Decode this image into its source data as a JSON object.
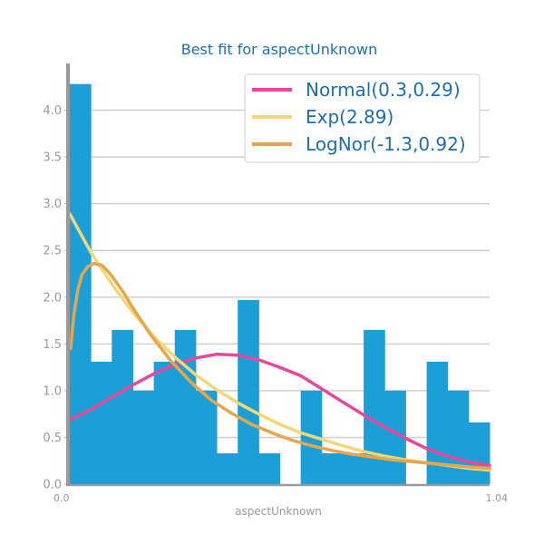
{
  "chart_data": {
    "type": "bar",
    "title": "Best fit for aspectUnknown",
    "xlabel": "aspectUnknown",
    "ylabel": "",
    "xlim": [
      0,
      1.04
    ],
    "ylim": [
      0,
      4.5
    ],
    "yticks": [
      "0.0",
      "0.5",
      "1.0",
      "1.5",
      "2.0",
      "2.5",
      "3.0",
      "3.5",
      "4.0"
    ],
    "xtick_labels_text": [
      "0.0",
      "1.04"
    ],
    "grid": "horizontal",
    "legend_position": "top-right",
    "histogram": {
      "bin_width": 0.052,
      "values": [
        4.28,
        1.31,
        1.65,
        1.0,
        1.31,
        1.65,
        1.0,
        0.33,
        1.97,
        0.33,
        0.0,
        1.0,
        0.33,
        0.33,
        1.65,
        1.0,
        0.0,
        1.31,
        1.0,
        0.66
      ],
      "color": "#1c9fd7"
    },
    "series": [
      {
        "name": "Normal(0.3,0.29)",
        "type": "line",
        "color": "#e8489b",
        "x": [
          0.0,
          0.052,
          0.104,
          0.156,
          0.208,
          0.26,
          0.312,
          0.364,
          0.416,
          0.468,
          0.52,
          0.572,
          0.624,
          0.676,
          0.728,
          0.78,
          0.832,
          0.884,
          0.936,
          0.988,
          1.04
        ],
        "y": [
          0.69,
          0.8,
          0.93,
          1.06,
          1.18,
          1.28,
          1.35,
          1.39,
          1.38,
          1.33,
          1.25,
          1.16,
          1.02,
          0.88,
          0.74,
          0.61,
          0.49,
          0.38,
          0.3,
          0.24,
          0.2
        ]
      },
      {
        "name": "Exp(2.89)",
        "type": "line",
        "color": "#f0d878",
        "x": [
          0.0,
          0.052,
          0.104,
          0.156,
          0.208,
          0.26,
          0.312,
          0.364,
          0.416,
          0.468,
          0.52,
          0.572,
          0.624,
          0.676,
          0.728,
          0.78,
          0.832,
          0.884,
          0.936,
          0.988,
          1.04
        ],
        "y": [
          2.89,
          2.48,
          2.14,
          1.84,
          1.58,
          1.36,
          1.17,
          1.01,
          0.87,
          0.75,
          0.64,
          0.55,
          0.48,
          0.41,
          0.35,
          0.3,
          0.26,
          0.23,
          0.2,
          0.17,
          0.15
        ]
      },
      {
        "name": "LogNor(-1.3,0.92)",
        "type": "line",
        "color": "#e8a64a",
        "x": [
          0.002,
          0.01,
          0.02,
          0.03,
          0.045,
          0.06,
          0.08,
          0.1,
          0.13,
          0.16,
          0.2,
          0.25,
          0.3,
          0.35,
          0.4,
          0.45,
          0.5,
          0.55,
          0.6,
          0.65,
          0.7,
          0.75,
          0.8,
          0.85,
          0.9,
          0.95,
          1.0,
          1.04
        ],
        "y": [
          1.45,
          1.82,
          2.08,
          2.24,
          2.33,
          2.36,
          2.34,
          2.25,
          2.07,
          1.86,
          1.6,
          1.32,
          1.09,
          0.9,
          0.76,
          0.64,
          0.55,
          0.47,
          0.41,
          0.36,
          0.32,
          0.29,
          0.26,
          0.24,
          0.22,
          0.2,
          0.18,
          0.17
        ]
      }
    ]
  }
}
